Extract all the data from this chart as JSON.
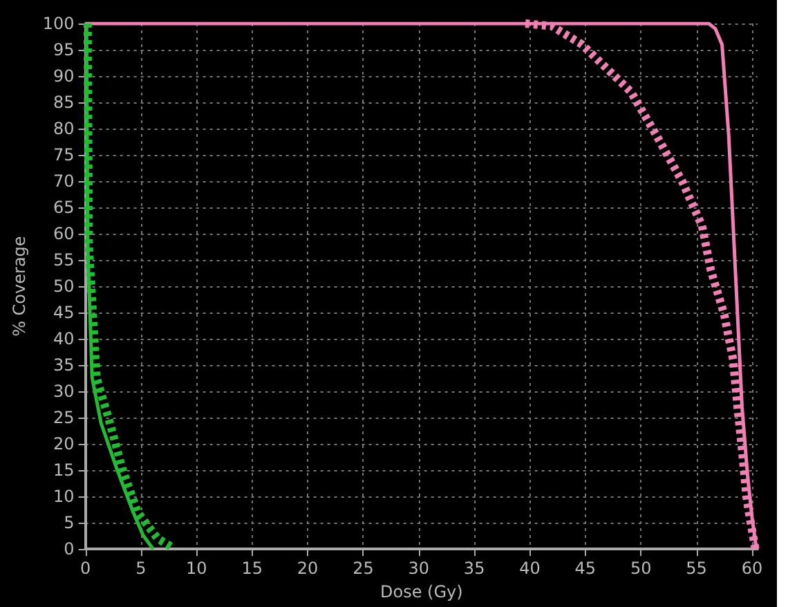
{
  "chart_data": {
    "type": "line",
    "xlabel": "Dose (Gy)",
    "ylabel": "% Coverage",
    "xlim": [
      0,
      60.5
    ],
    "ylim": [
      0,
      100
    ],
    "xticks": [
      0,
      5,
      10,
      15,
      20,
      25,
      30,
      35,
      40,
      45,
      50,
      55,
      60
    ],
    "yticks": [
      0,
      5,
      10,
      15,
      20,
      25,
      30,
      35,
      40,
      45,
      50,
      55,
      60,
      65,
      70,
      75,
      80,
      85,
      90,
      95,
      100
    ],
    "grid": true,
    "marker": "none",
    "series": [
      {
        "color": "#f07fb4",
        "line_style": "solid",
        "x": [
          0,
          56.1,
          56.7,
          57.3,
          57.9,
          58.5,
          59.1,
          59.6,
          60,
          60.4
        ],
        "values": [
          100,
          100,
          99,
          96,
          78.7,
          53,
          27,
          14,
          6,
          0
        ]
      },
      {
        "color": "#f07fb4",
        "line_style": "dotted",
        "x": [
          39.6,
          42,
          44.7,
          49.1,
          51.4,
          53.7,
          55.5,
          56.3,
          57.5,
          58.3,
          58.7,
          59.1,
          59.5,
          59.8,
          60.3
        ],
        "values": [
          100,
          99.5,
          96,
          87,
          78.7,
          70,
          61.5,
          53,
          44.6,
          36,
          27,
          19,
          10,
          6,
          0
        ]
      },
      {
        "color": "#22bb33",
        "line_style": "solid",
        "x": [
          0.1,
          0.2,
          0.6,
          1.4,
          2.8,
          4.3,
          5.2,
          6.1
        ],
        "values": [
          100,
          58,
          32.6,
          24,
          15.4,
          7,
          2.6,
          0
        ]
      },
      {
        "color": "#22bb33",
        "line_style": "dotted",
        "x": [
          0.2,
          0.3,
          1.0,
          2.2,
          3.3,
          4.7,
          6.5,
          7.7
        ],
        "values": [
          100,
          58,
          32.6,
          24,
          15.4,
          7,
          2,
          0.5
        ]
      }
    ]
  }
}
